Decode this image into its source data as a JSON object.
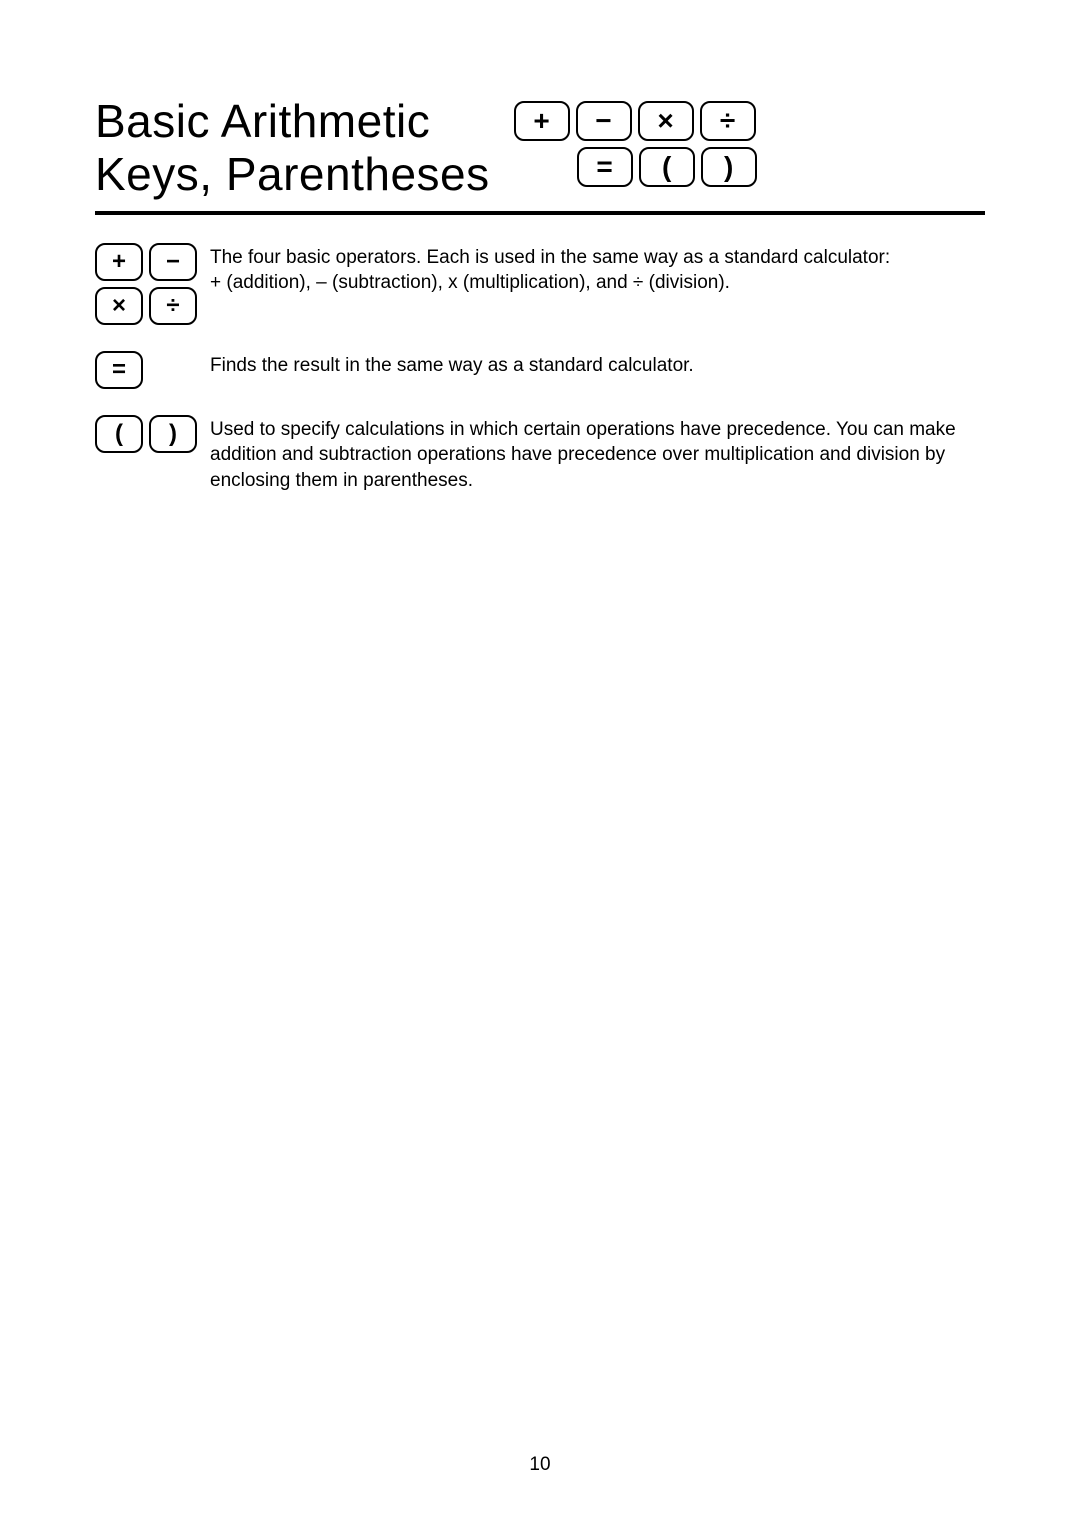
{
  "title": {
    "line1": "Basic Arithmetic",
    "line2": "Keys, Parentheses"
  },
  "header_keys": {
    "row1": [
      "+",
      "−",
      "×",
      "÷"
    ],
    "row2": [
      "=",
      "(",
      ")"
    ]
  },
  "sections": [
    {
      "keys": [
        [
          "+",
          "−"
        ],
        [
          "×",
          "÷"
        ]
      ],
      "text_lines": [
        "The four basic operators. Each is used in the same way as a standard calculator:",
        "+ (addition), – (subtraction), x (multiplication), and ÷ (division)."
      ]
    },
    {
      "keys": [
        [
          "="
        ]
      ],
      "text_lines": [
        "Finds the result in the same way as a standard calculator."
      ]
    },
    {
      "keys": [
        [
          "(",
          ")"
        ]
      ],
      "text_lines": [
        "Used to specify calculations in which certain operations have precedence. You can make addition and subtraction operations have precedence over multiplication and division by enclosing them in parentheses."
      ]
    }
  ],
  "page_number": "10"
}
